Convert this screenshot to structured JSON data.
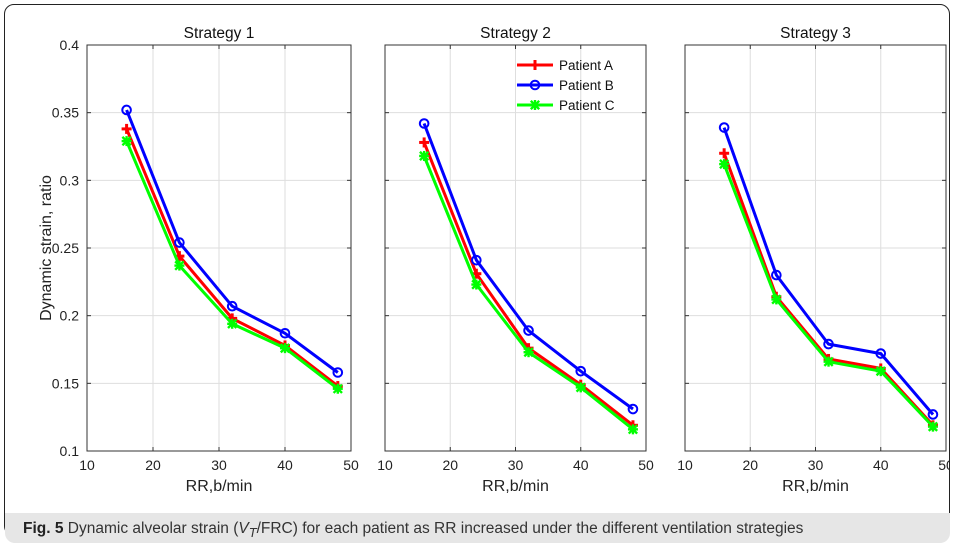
{
  "chart_data": {
    "type": "line",
    "ylabel": "Dynamic strain, ratio",
    "ylim": [
      0.1,
      0.4
    ],
    "yticks": [
      0.1,
      0.15,
      0.2,
      0.25,
      0.3,
      0.35,
      0.4
    ],
    "xlim": [
      10,
      50
    ],
    "xticks": [
      10,
      20,
      30,
      40,
      50
    ],
    "grid": true,
    "legend_placement": "top-right of Strategy 2 panel",
    "x": [
      16,
      24,
      32,
      40,
      48
    ],
    "panels": [
      {
        "title": "Strategy 1",
        "xlabel": "RR,b/min",
        "series": [
          {
            "name": "Patient A",
            "values": [
              0.338,
              0.244,
              0.198,
              0.178,
              0.148
            ]
          },
          {
            "name": "Patient B",
            "values": [
              0.352,
              0.254,
              0.207,
              0.187,
              0.158
            ]
          },
          {
            "name": "Patient C",
            "values": [
              0.329,
              0.237,
              0.194,
              0.176,
              0.146
            ]
          }
        ]
      },
      {
        "title": "Strategy 2",
        "xlabel": "RR,b/min",
        "series": [
          {
            "name": "Patient A",
            "values": [
              0.328,
              0.231,
              0.176,
              0.149,
              0.119
            ]
          },
          {
            "name": "Patient B",
            "values": [
              0.342,
              0.241,
              0.189,
              0.159,
              0.131
            ]
          },
          {
            "name": "Patient C",
            "values": [
              0.318,
              0.223,
              0.173,
              0.147,
              0.116
            ]
          }
        ]
      },
      {
        "title": "Strategy 3",
        "xlabel": "RR,b/min",
        "series": [
          {
            "name": "Patient A",
            "values": [
              0.32,
              0.214,
              0.168,
              0.161,
              0.119
            ]
          },
          {
            "name": "Patient B",
            "values": [
              0.339,
              0.23,
              0.179,
              0.172,
              0.127
            ]
          },
          {
            "name": "Patient C",
            "values": [
              0.312,
              0.212,
              0.166,
              0.159,
              0.118
            ]
          }
        ]
      }
    ],
    "series_styles": [
      {
        "name": "Patient A",
        "color": "#ff0000",
        "marker": "plus"
      },
      {
        "name": "Patient B",
        "color": "#0000ff",
        "marker": "circle"
      },
      {
        "name": "Patient C",
        "color": "#00ff00",
        "marker": "asterisk"
      }
    ]
  },
  "caption": {
    "label": "Fig. 5",
    "text_before": "Dynamic alveolar strain (",
    "vt_main": "V",
    "vt_sub": "T",
    "text_after": "/FRC) for each patient as RR increased under the different ventilation strategies"
  }
}
